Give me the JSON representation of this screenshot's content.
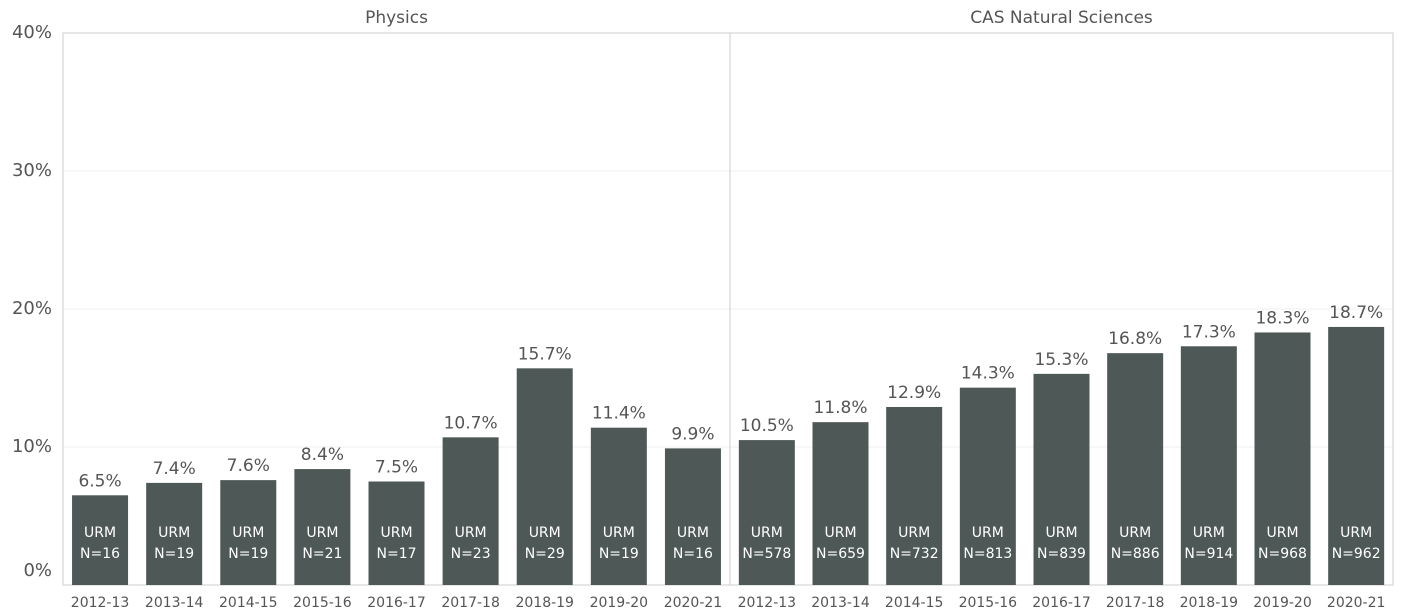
{
  "chart_data": [
    {
      "type": "bar",
      "title": "Physics",
      "inner_label": "URM",
      "categories": [
        "2012-13",
        "2013-14",
        "2014-15",
        "2015-16",
        "2016-17",
        "2017-18",
        "2018-19",
        "2019-20",
        "2020-21"
      ],
      "values": [
        6.5,
        7.4,
        7.6,
        8.4,
        7.5,
        10.7,
        15.7,
        11.4,
        9.9
      ],
      "value_labels": [
        "6.5%",
        "7.4%",
        "7.6%",
        "8.4%",
        "7.5%",
        "10.7%",
        "15.7%",
        "11.4%",
        "9.9%"
      ],
      "counts": [
        16,
        19,
        19,
        21,
        17,
        23,
        29,
        19,
        16
      ],
      "count_labels": [
        "N=16",
        "N=19",
        "N=19",
        "N=21",
        "N=17",
        "N=23",
        "N=29",
        "N=19",
        "N=16"
      ],
      "color": "#4e5857",
      "ylim": [
        0,
        40
      ],
      "yticks": [
        {
          "value": 0,
          "label": "0%"
        },
        {
          "value": 10,
          "label": "10%"
        },
        {
          "value": 20,
          "label": "20%"
        },
        {
          "value": 30,
          "label": "30%"
        },
        {
          "value": 40,
          "label": "40%"
        }
      ],
      "grid": true
    },
    {
      "type": "bar",
      "title": "CAS Natural Sciences",
      "inner_label": "URM",
      "categories": [
        "2012-13",
        "2013-14",
        "2014-15",
        "2015-16",
        "2016-17",
        "2017-18",
        "2018-19",
        "2019-20",
        "2020-21"
      ],
      "values": [
        10.5,
        11.8,
        12.9,
        14.3,
        15.3,
        16.8,
        17.3,
        18.3,
        18.7
      ],
      "value_labels": [
        "10.5%",
        "11.8%",
        "12.9%",
        "14.3%",
        "15.3%",
        "16.8%",
        "17.3%",
        "18.3%",
        "18.7%"
      ],
      "counts": [
        578,
        659,
        732,
        813,
        839,
        886,
        914,
        968,
        962
      ],
      "count_labels": [
        "N=578",
        "N=659",
        "N=732",
        "N=813",
        "N=839",
        "N=886",
        "N=914",
        "N=968",
        "N=962"
      ],
      "color": "#4e5857",
      "ylim": [
        0,
        40
      ],
      "yticks": [
        {
          "value": 0,
          "label": "0%"
        },
        {
          "value": 10,
          "label": "10%"
        },
        {
          "value": 20,
          "label": "20%"
        },
        {
          "value": 30,
          "label": "30%"
        },
        {
          "value": 40,
          "label": "40%"
        }
      ],
      "grid": true
    }
  ]
}
